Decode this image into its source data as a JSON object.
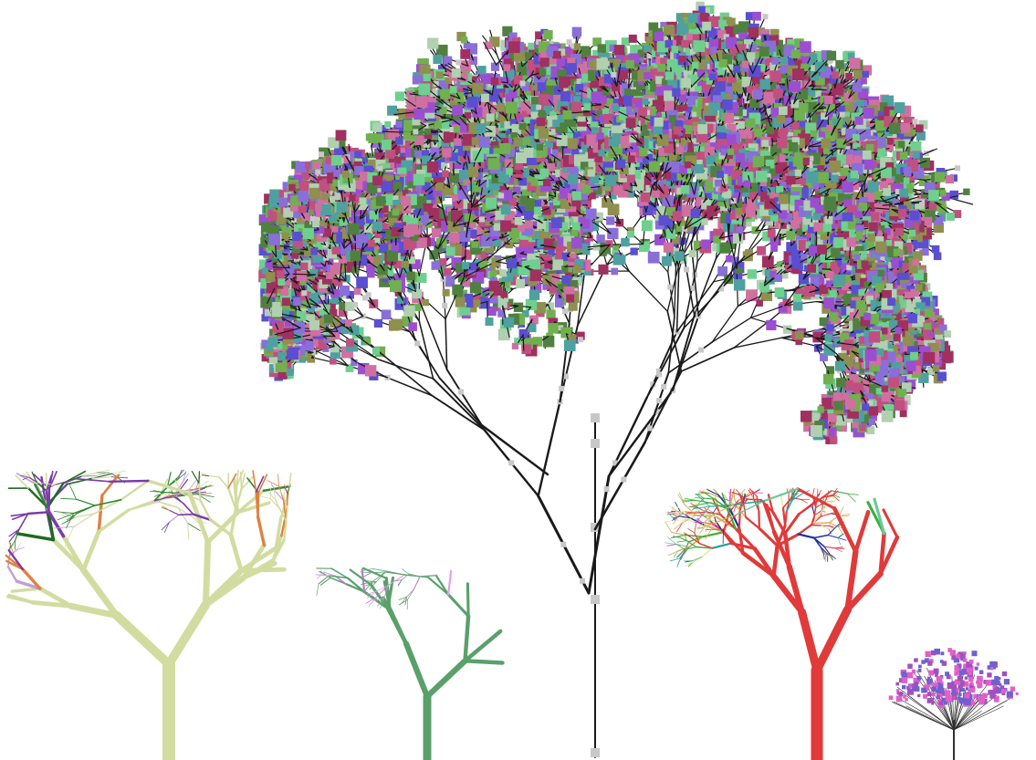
{
  "scene": {
    "background": "#ffffff",
    "trees": [
      {
        "name": "central-blossom-tree",
        "trunk_color": "#1a1a1a",
        "node_color": "#c8c8c8",
        "blossom_palette": [
          "#9b4fd0",
          "#5a4fd0",
          "#6fcf8f",
          "#8a6fd8",
          "#c05080",
          "#8f8f4f",
          "#4fa0a0",
          "#d070a0",
          "#70b050",
          "#b0d0b0",
          "#a03060",
          "#508040"
        ]
      },
      {
        "name": "left-multicolor-tree",
        "palette": [
          "#d2dca0",
          "#2a8a2a",
          "#7a3aa8",
          "#e08040",
          "#c0a0d0",
          "#1f6a1f"
        ]
      },
      {
        "name": "green-lilac-tree",
        "palette": [
          "#5aa06a",
          "#7ab08a",
          "#c07ad0",
          "#e0a0e8"
        ]
      },
      {
        "name": "right-multicolor-tree",
        "palette": [
          "#e03a3a",
          "#6ac89a",
          "#3ab03a",
          "#e0a030",
          "#20a0a0",
          "#e8e8a0",
          "#d8b060",
          "#2030a0",
          "#e040c0"
        ]
      },
      {
        "name": "small-pink-tree",
        "palette": [
          "#e060c8",
          "#a050c0",
          "#7060d0",
          "#303030"
        ]
      }
    ]
  }
}
